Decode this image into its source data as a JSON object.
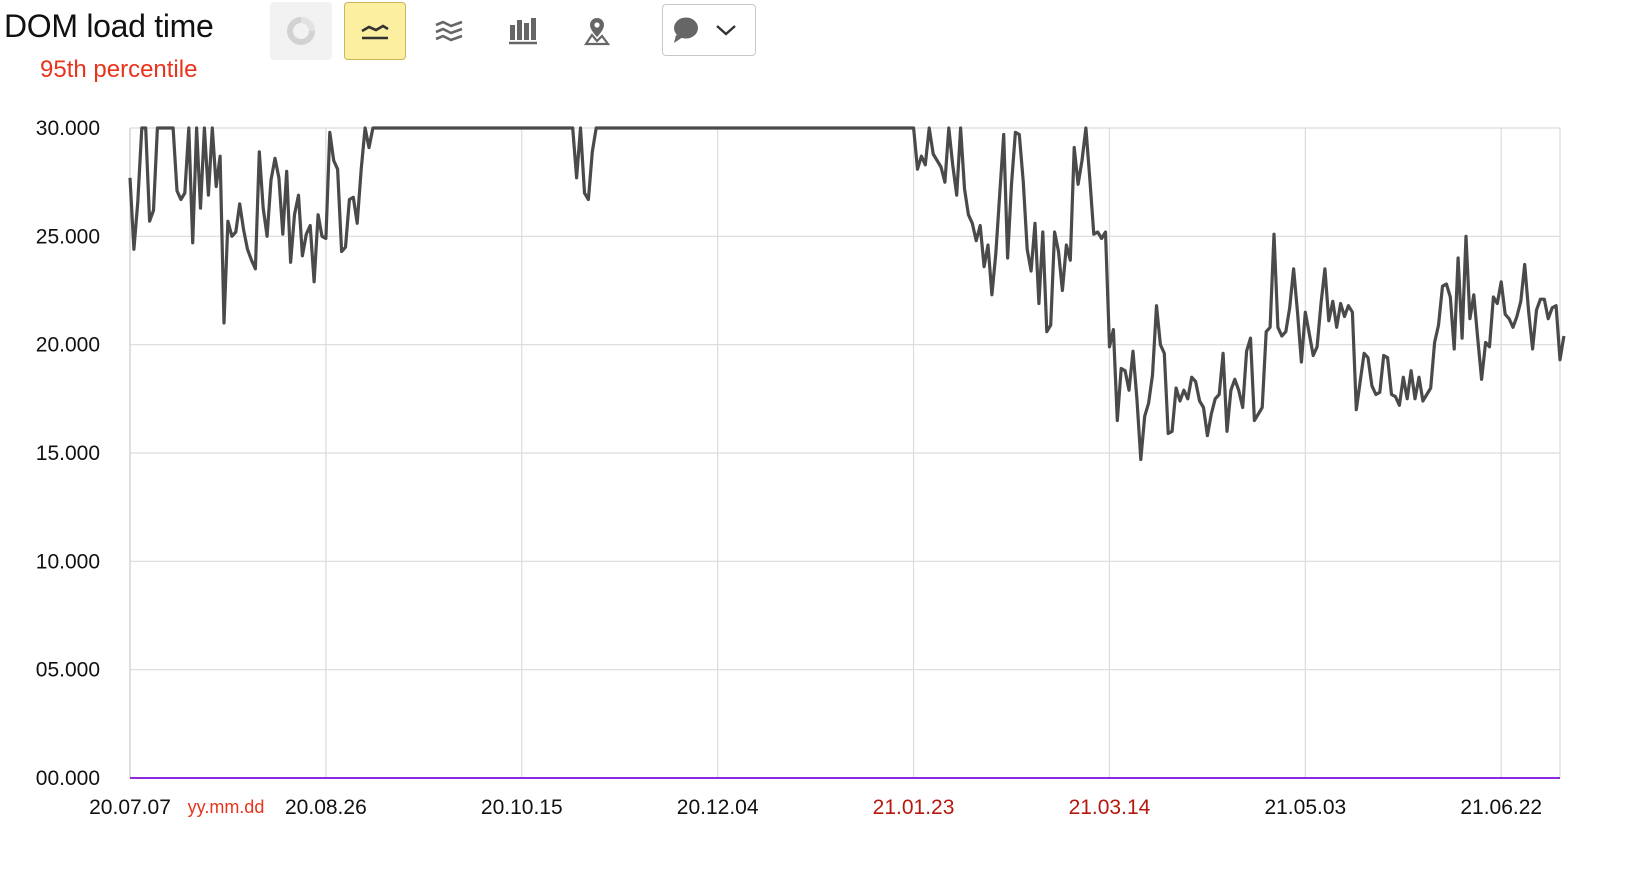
{
  "header": {
    "title": "DOM load time",
    "subtitle": "95th percentile"
  },
  "toolbar": {
    "buttons": [
      {
        "name": "pie-chart-button",
        "icon": "pie-chart-icon",
        "state": "disabled"
      },
      {
        "name": "line-chart-button",
        "icon": "line-chart-icon",
        "state": "active"
      },
      {
        "name": "area-chart-button",
        "icon": "stacked-area-icon",
        "state": "normal"
      },
      {
        "name": "bar-chart-button",
        "icon": "bar-chart-icon",
        "state": "normal"
      },
      {
        "name": "map-chart-button",
        "icon": "map-pin-icon",
        "state": "normal"
      }
    ],
    "comment_select": {
      "icon": "comment-icon",
      "chevron": "chevron-down-icon"
    }
  },
  "colors": {
    "line": "#4a4a4a",
    "grid": "#dcdcdc",
    "baseline": "#8a2be2",
    "subtitle": "#e8341c",
    "weekend_tick": "#b4180e",
    "active_button": "#fcef9f"
  },
  "chart_data": {
    "type": "line",
    "title": "DOM load time",
    "subtitle": "95th percentile",
    "x_format_label": "yy.mm.dd",
    "ylim": [
      0,
      30
    ],
    "yticks": [
      {
        "label": "30.000",
        "value": 30
      },
      {
        "label": "25.000",
        "value": 25
      },
      {
        "label": "20.000",
        "value": 20
      },
      {
        "label": "15.000",
        "value": 15
      },
      {
        "label": "10.000",
        "value": 10
      },
      {
        "label": "05.000",
        "value": 5
      },
      {
        "label": "00.000",
        "value": 0
      }
    ],
    "xticks": [
      {
        "label": "20.07.07",
        "date": "2020-07-07",
        "red": false
      },
      {
        "label": "20.08.26",
        "date": "2020-08-26",
        "red": false
      },
      {
        "label": "20.10.15",
        "date": "2020-10-15",
        "red": false
      },
      {
        "label": "20.12.04",
        "date": "2020-12-04",
        "red": false
      },
      {
        "label": "21.01.23",
        "date": "2021-01-23",
        "red": true
      },
      {
        "label": "21.03.14",
        "date": "2021-03-14",
        "red": true
      },
      {
        "label": "21.05.03",
        "date": "2021-05-03",
        "red": false
      },
      {
        "label": "21.06.22",
        "date": "2021-06-22",
        "red": false
      }
    ],
    "x_range": [
      "2020-07-07",
      "2021-07-07"
    ],
    "grid": true,
    "series": [
      {
        "points": [
          [
            "2020-07-07",
            27.7
          ],
          [
            "2020-07-08",
            24.4
          ],
          [
            "2020-07-09",
            26.6
          ],
          [
            "2020-07-10",
            30
          ],
          [
            "2020-07-11",
            30
          ],
          [
            "2020-07-12",
            25.7
          ],
          [
            "2020-07-13",
            26.2
          ],
          [
            "2020-07-14",
            30
          ],
          [
            "2020-07-15",
            30
          ],
          [
            "2020-07-16",
            30
          ],
          [
            "2020-07-17",
            30
          ],
          [
            "2020-07-18",
            30
          ],
          [
            "2020-07-19",
            27.1
          ],
          [
            "2020-07-20",
            26.7
          ],
          [
            "2020-07-21",
            27.0
          ],
          [
            "2020-07-22",
            30
          ],
          [
            "2020-07-23",
            24.7
          ],
          [
            "2020-07-24",
            30
          ],
          [
            "2020-07-25",
            26.3
          ],
          [
            "2020-07-26",
            30
          ],
          [
            "2020-07-27",
            26.9
          ],
          [
            "2020-07-28",
            30
          ],
          [
            "2020-07-29",
            27.3
          ],
          [
            "2020-07-30",
            28.7
          ],
          [
            "2020-07-31",
            21.0
          ],
          [
            "2020-08-01",
            25.7
          ],
          [
            "2020-08-02",
            25.0
          ],
          [
            "2020-08-03",
            25.2
          ],
          [
            "2020-08-04",
            26.5
          ],
          [
            "2020-08-05",
            25.3
          ],
          [
            "2020-08-06",
            24.4
          ],
          [
            "2020-08-07",
            23.9
          ],
          [
            "2020-08-08",
            23.5
          ],
          [
            "2020-08-09",
            28.9
          ],
          [
            "2020-08-10",
            26.3
          ],
          [
            "2020-08-11",
            25.0
          ],
          [
            "2020-08-12",
            27.6
          ],
          [
            "2020-08-13",
            28.6
          ],
          [
            "2020-08-14",
            27.7
          ],
          [
            "2020-08-15",
            25.1
          ],
          [
            "2020-08-16",
            28.0
          ],
          [
            "2020-08-17",
            23.8
          ],
          [
            "2020-08-18",
            26.0
          ],
          [
            "2020-08-19",
            26.9
          ],
          [
            "2020-08-20",
            24.1
          ],
          [
            "2020-08-21",
            25.1
          ],
          [
            "2020-08-22",
            25.5
          ],
          [
            "2020-08-23",
            22.9
          ],
          [
            "2020-08-24",
            26.0
          ],
          [
            "2020-08-25",
            25.0
          ],
          [
            "2020-08-26",
            24.9
          ],
          [
            "2020-08-27",
            29.8
          ],
          [
            "2020-08-28",
            28.5
          ],
          [
            "2020-08-29",
            28.1
          ],
          [
            "2020-08-30",
            24.3
          ],
          [
            "2020-08-31",
            24.5
          ],
          [
            "2020-09-01",
            26.7
          ],
          [
            "2020-09-02",
            26.8
          ],
          [
            "2020-09-03",
            25.6
          ],
          [
            "2020-09-04",
            28.1
          ],
          [
            "2020-09-05",
            30
          ],
          [
            "2020-09-06",
            29.1
          ],
          [
            "2020-09-07",
            30
          ],
          [
            "2020-09-08",
            30
          ],
          [
            "2020-10-28",
            30
          ],
          [
            "2020-10-29",
            27.7
          ],
          [
            "2020-10-30",
            30
          ],
          [
            "2020-10-31",
            27.0
          ],
          [
            "2020-11-01",
            26.7
          ],
          [
            "2020-11-02",
            28.9
          ],
          [
            "2020-11-03",
            30
          ],
          [
            "2021-01-23",
            30
          ],
          [
            "2021-01-24",
            28.1
          ],
          [
            "2021-01-25",
            28.7
          ],
          [
            "2021-01-26",
            28.3
          ],
          [
            "2021-01-27",
            30
          ],
          [
            "2021-01-28",
            28.8
          ],
          [
            "2021-01-29",
            28.5
          ],
          [
            "2021-01-30",
            28.2
          ],
          [
            "2021-01-31",
            27.5
          ],
          [
            "2021-02-01",
            30
          ],
          [
            "2021-02-02",
            28.3
          ],
          [
            "2021-02-03",
            26.9
          ],
          [
            "2021-02-04",
            30
          ],
          [
            "2021-02-05",
            27.2
          ],
          [
            "2021-02-06",
            26.0
          ],
          [
            "2021-02-07",
            25.6
          ],
          [
            "2021-02-08",
            24.8
          ],
          [
            "2021-02-09",
            25.5
          ],
          [
            "2021-02-10",
            23.6
          ],
          [
            "2021-02-11",
            24.6
          ],
          [
            "2021-02-12",
            22.3
          ],
          [
            "2021-02-13",
            24.2
          ],
          [
            "2021-02-14",
            27.0
          ],
          [
            "2021-02-15",
            29.7
          ],
          [
            "2021-02-16",
            24.0
          ],
          [
            "2021-02-17",
            27.4
          ],
          [
            "2021-02-18",
            29.8
          ],
          [
            "2021-02-19",
            29.7
          ],
          [
            "2021-02-20",
            27.5
          ],
          [
            "2021-02-21",
            24.4
          ],
          [
            "2021-02-22",
            23.4
          ],
          [
            "2021-02-23",
            25.6
          ],
          [
            "2021-02-24",
            21.9
          ],
          [
            "2021-02-25",
            25.2
          ],
          [
            "2021-02-26",
            20.6
          ],
          [
            "2021-02-27",
            20.9
          ],
          [
            "2021-02-28",
            25.2
          ],
          [
            "2021-03-01",
            24.3
          ],
          [
            "2021-03-02",
            22.5
          ],
          [
            "2021-03-03",
            24.6
          ],
          [
            "2021-03-04",
            23.9
          ],
          [
            "2021-03-05",
            29.1
          ],
          [
            "2021-03-06",
            27.4
          ],
          [
            "2021-03-07",
            28.5
          ],
          [
            "2021-03-08",
            30
          ],
          [
            "2021-03-09",
            27.6
          ],
          [
            "2021-03-10",
            25.1
          ],
          [
            "2021-03-11",
            25.2
          ],
          [
            "2021-03-12",
            24.9
          ],
          [
            "2021-03-13",
            25.2
          ],
          [
            "2021-03-14",
            19.9
          ],
          [
            "2021-03-15",
            20.7
          ],
          [
            "2021-03-16",
            16.5
          ],
          [
            "2021-03-17",
            18.9
          ],
          [
            "2021-03-18",
            18.8
          ],
          [
            "2021-03-19",
            17.9
          ],
          [
            "2021-03-20",
            19.7
          ],
          [
            "2021-03-21",
            17.5
          ],
          [
            "2021-03-22",
            14.7
          ],
          [
            "2021-03-23",
            16.7
          ],
          [
            "2021-03-24",
            17.3
          ],
          [
            "2021-03-25",
            18.6
          ],
          [
            "2021-03-26",
            21.8
          ],
          [
            "2021-03-27",
            20.0
          ],
          [
            "2021-03-28",
            19.6
          ],
          [
            "2021-03-29",
            15.9
          ],
          [
            "2021-03-30",
            16.0
          ],
          [
            "2021-03-31",
            18.0
          ],
          [
            "2021-04-01",
            17.4
          ],
          [
            "2021-04-02",
            17.9
          ],
          [
            "2021-04-03",
            17.5
          ],
          [
            "2021-04-04",
            18.5
          ],
          [
            "2021-04-05",
            18.3
          ],
          [
            "2021-04-06",
            17.4
          ],
          [
            "2021-04-07",
            17.1
          ],
          [
            "2021-04-08",
            15.8
          ],
          [
            "2021-04-09",
            16.8
          ],
          [
            "2021-04-10",
            17.5
          ],
          [
            "2021-04-11",
            17.7
          ],
          [
            "2021-04-12",
            19.6
          ],
          [
            "2021-04-13",
            16.0
          ],
          [
            "2021-04-14",
            17.9
          ],
          [
            "2021-04-15",
            18.4
          ],
          [
            "2021-04-16",
            17.9
          ],
          [
            "2021-04-17",
            17.1
          ],
          [
            "2021-04-18",
            19.7
          ],
          [
            "2021-04-19",
            20.3
          ],
          [
            "2021-04-20",
            16.5
          ],
          [
            "2021-04-21",
            16.8
          ],
          [
            "2021-04-22",
            17.1
          ],
          [
            "2021-04-23",
            20.6
          ],
          [
            "2021-04-24",
            20.8
          ],
          [
            "2021-04-25",
            25.1
          ],
          [
            "2021-04-26",
            20.8
          ],
          [
            "2021-04-27",
            20.4
          ],
          [
            "2021-04-28",
            20.6
          ],
          [
            "2021-04-29",
            21.7
          ],
          [
            "2021-04-30",
            23.5
          ],
          [
            "2021-05-01",
            21.5
          ],
          [
            "2021-05-02",
            19.2
          ],
          [
            "2021-05-03",
            21.5
          ],
          [
            "2021-05-04",
            20.5
          ],
          [
            "2021-05-05",
            19.5
          ],
          [
            "2021-05-06",
            19.9
          ],
          [
            "2021-05-07",
            21.9
          ],
          [
            "2021-05-08",
            23.5
          ],
          [
            "2021-05-09",
            21.1
          ],
          [
            "2021-05-10",
            22.0
          ],
          [
            "2021-05-11",
            20.8
          ],
          [
            "2021-05-12",
            21.9
          ],
          [
            "2021-05-13",
            21.3
          ],
          [
            "2021-05-14",
            21.8
          ],
          [
            "2021-05-15",
            21.5
          ],
          [
            "2021-05-16",
            17.0
          ],
          [
            "2021-05-17",
            18.3
          ],
          [
            "2021-05-18",
            19.6
          ],
          [
            "2021-05-19",
            19.4
          ],
          [
            "2021-05-20",
            18.1
          ],
          [
            "2021-05-21",
            17.7
          ],
          [
            "2021-05-22",
            17.8
          ],
          [
            "2021-05-23",
            19.5
          ],
          [
            "2021-05-24",
            19.4
          ],
          [
            "2021-05-25",
            17.7
          ],
          [
            "2021-05-26",
            17.6
          ],
          [
            "2021-05-27",
            17.2
          ],
          [
            "2021-05-28",
            18.5
          ],
          [
            "2021-05-29",
            17.5
          ],
          [
            "2021-05-30",
            18.8
          ],
          [
            "2021-05-31",
            17.5
          ],
          [
            "2021-06-01",
            18.5
          ],
          [
            "2021-06-02",
            17.4
          ],
          [
            "2021-06-03",
            17.7
          ],
          [
            "2021-06-04",
            18.0
          ],
          [
            "2021-06-05",
            20.1
          ],
          [
            "2021-06-06",
            20.9
          ],
          [
            "2021-06-07",
            22.7
          ],
          [
            "2021-06-08",
            22.8
          ],
          [
            "2021-06-09",
            22.2
          ],
          [
            "2021-06-10",
            19.8
          ],
          [
            "2021-06-11",
            24.0
          ],
          [
            "2021-06-12",
            20.3
          ],
          [
            "2021-06-13",
            25.0
          ],
          [
            "2021-06-14",
            21.2
          ],
          [
            "2021-06-15",
            22.3
          ],
          [
            "2021-06-16",
            20.3
          ],
          [
            "2021-06-17",
            18.4
          ],
          [
            "2021-06-18",
            20.1
          ],
          [
            "2021-06-19",
            19.9
          ],
          [
            "2021-06-20",
            22.2
          ],
          [
            "2021-06-21",
            21.9
          ],
          [
            "2021-06-22",
            22.9
          ],
          [
            "2021-06-23",
            21.4
          ],
          [
            "2021-06-24",
            21.2
          ],
          [
            "2021-06-25",
            20.8
          ],
          [
            "2021-06-26",
            21.3
          ],
          [
            "2021-06-27",
            22.0
          ],
          [
            "2021-06-28",
            23.7
          ],
          [
            "2021-06-29",
            21.5
          ],
          [
            "2021-06-30",
            19.8
          ],
          [
            "2021-07-01",
            21.6
          ],
          [
            "2021-07-02",
            22.1
          ],
          [
            "2021-07-03",
            22.1
          ],
          [
            "2021-07-04",
            21.2
          ],
          [
            "2021-07-05",
            21.7
          ],
          [
            "2021-07-06",
            21.8
          ],
          [
            "2021-07-07",
            19.3
          ],
          [
            "2021-07-08",
            20.4
          ]
        ]
      }
    ]
  }
}
